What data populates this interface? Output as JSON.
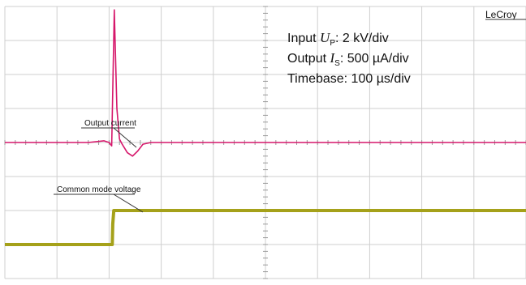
{
  "chart_data": {
    "type": "line",
    "brand": "LeCroy",
    "annotations": {
      "input": {
        "prefix": "Input",
        "symbol": "U",
        "subscript": "P",
        "suffix": ": 2 kV/div"
      },
      "output": {
        "prefix": "Output",
        "symbol": "I",
        "subscript": "S",
        "suffix": ": 500 µA/div"
      },
      "timebase": "Timebase: 100 µs/div"
    },
    "grid": {
      "x_divisions": 10,
      "y_divisions": 8,
      "minor_per_division": 5,
      "visible": true
    },
    "series": [
      {
        "name": "Output current",
        "color": "#d6176b",
        "x": [
          0,
          1.6,
          1.9,
          2.0,
          2.05,
          2.1,
          2.15,
          2.2,
          2.25,
          2.35,
          2.45,
          2.55,
          2.65,
          2.8,
          10
        ],
        "y": [
          4.0,
          4.0,
          4.05,
          4.0,
          3.9,
          7.9,
          5.0,
          4.1,
          3.95,
          3.7,
          3.6,
          3.75,
          3.95,
          4.0,
          4.0
        ]
      },
      {
        "name": "Common mode voltage",
        "color": "#a5a11a",
        "x": [
          0,
          2.06,
          2.07,
          2.09,
          10
        ],
        "y": [
          1.0,
          1.0,
          1.6,
          2.0,
          2.0
        ]
      }
    ]
  }
}
